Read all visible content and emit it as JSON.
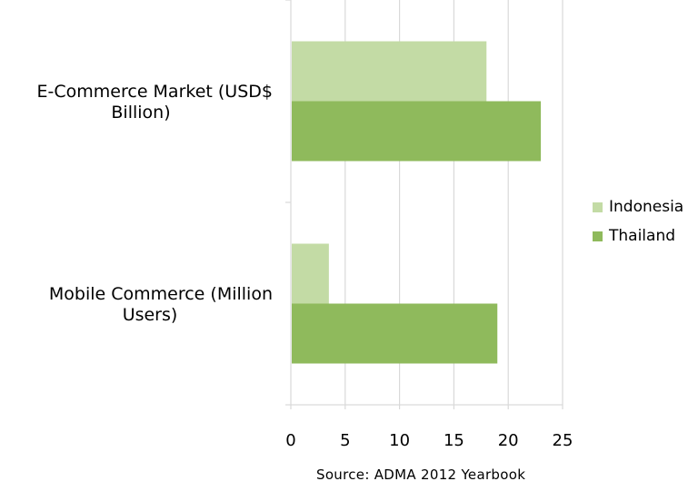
{
  "chart_data": {
    "type": "bar",
    "orientation": "horizontal",
    "categories": [
      "E-Commerce Market (USD$ Billion)",
      "Mobile Commerce (Million Users)"
    ],
    "category_lines": [
      [
        "E-Commerce Market (USD$",
        "Billion)"
      ],
      [
        "Mobile Commerce (Million",
        "Users)"
      ]
    ],
    "series": [
      {
        "name": "Indonesia",
        "color": "#c3dba5",
        "values": [
          18,
          3.5
        ]
      },
      {
        "name": "Thailand",
        "color": "#8fba5c",
        "values": [
          23,
          19
        ]
      }
    ],
    "xlim": [
      0,
      25
    ],
    "xticks": [
      0,
      5,
      10,
      15,
      20,
      25
    ],
    "grid": true,
    "legend_position": "right",
    "title": "",
    "xlabel": "",
    "ylabel": ""
  },
  "source": "Source: ADMA 2012 Yearbook",
  "colors": {
    "grid": "#d9d9d9",
    "axis": "#d9d9d9"
  }
}
